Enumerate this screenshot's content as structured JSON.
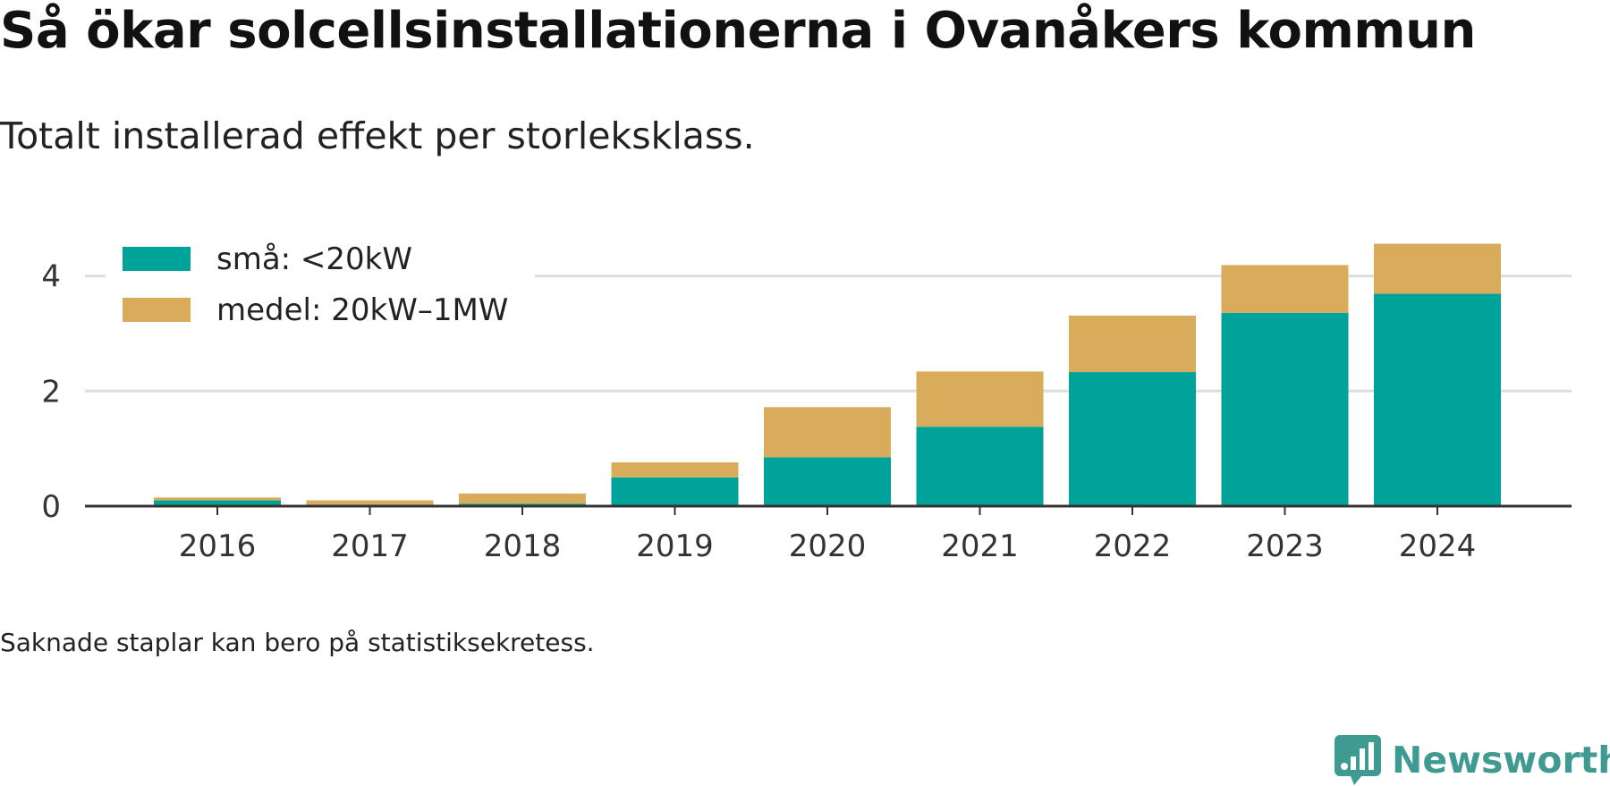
{
  "title": "Så ökar solcellsinstallationerna i Ovanåkers kommun",
  "subtitle": "Totalt installerad effekt per storleksklass.",
  "footnote": "Saknade staplar kan bero på statistiksekretess.",
  "brand": "Newsworthy",
  "colors": {
    "small": "#00a39a",
    "medium": "#d9ac5c",
    "grid": "#dddddd",
    "axis": "#333333"
  },
  "chart_data": {
    "type": "bar",
    "stacked": true,
    "categories": [
      "2016",
      "2017",
      "2018",
      "2019",
      "2020",
      "2021",
      "2022",
      "2023",
      "2024"
    ],
    "series": [
      {
        "name": "små: <20kW",
        "values": [
          0.1,
          0.02,
          0.04,
          0.5,
          0.85,
          1.38,
          2.33,
          3.36,
          3.69
        ]
      },
      {
        "name": "medel: 20kW–1MW",
        "values": [
          0.05,
          0.08,
          0.18,
          0.26,
          0.87,
          0.96,
          0.98,
          0.83,
          0.87
        ]
      }
    ],
    "yticks": [
      0,
      2,
      4
    ],
    "ylim": [
      0,
      4.6
    ],
    "grid": true,
    "legend_position": "top-left"
  }
}
